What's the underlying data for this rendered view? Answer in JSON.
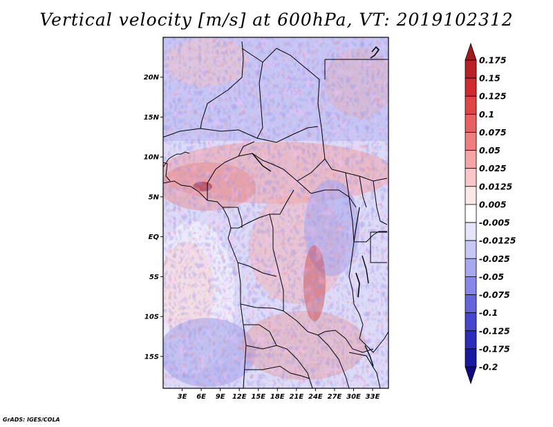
{
  "title": "Vertical velocity [m/s] at 600hPa, VT: 2019102312",
  "credit": "GrADS: IGES/COLA",
  "map": {
    "lon_range": [
      0,
      35.5
    ],
    "lat_range": [
      -19,
      25
    ],
    "lat_ticks": [
      {
        "value": 20,
        "label": "20N"
      },
      {
        "value": 15,
        "label": "15N"
      },
      {
        "value": 10,
        "label": "10N"
      },
      {
        "value": 5,
        "label": "5N"
      },
      {
        "value": 0,
        "label": "EQ"
      },
      {
        "value": -5,
        "label": "5S"
      },
      {
        "value": -10,
        "label": "10S"
      },
      {
        "value": -15,
        "label": "15S"
      }
    ],
    "lon_ticks": [
      {
        "value": 3,
        "label": "3E"
      },
      {
        "value": 6,
        "label": "6E"
      },
      {
        "value": 9,
        "label": "9E"
      },
      {
        "value": 12,
        "label": "12E"
      },
      {
        "value": 15,
        "label": "15E"
      },
      {
        "value": 18,
        "label": "18E"
      },
      {
        "value": 21,
        "label": "21E"
      },
      {
        "value": 24,
        "label": "24E"
      },
      {
        "value": 27,
        "label": "27E"
      },
      {
        "value": 30,
        "label": "30E"
      },
      {
        "value": 33,
        "label": "33E"
      }
    ]
  },
  "colorbar": {
    "labels": [
      "0.175",
      "0.15",
      "0.125",
      "0.1",
      "0.075",
      "0.05",
      "0.025",
      "0.0125",
      "0.005",
      "-0.005",
      "-0.0125",
      "-0.025",
      "-0.05",
      "-0.075",
      "-0.1",
      "-0.125",
      "-0.175",
      "-0.2"
    ],
    "colors": [
      "#a01a1e",
      "#b82025",
      "#d02a30",
      "#df4545",
      "#e86060",
      "#ee7f7f",
      "#f5a5a5",
      "#fac8c8",
      "#fde8e8",
      "#ffffff",
      "#e4e4fb",
      "#c8c8f6",
      "#a8a8f0",
      "#8787e8",
      "#6464dd",
      "#4646cf",
      "#2d2dba",
      "#1a1aa0",
      "#100a80"
    ]
  }
}
